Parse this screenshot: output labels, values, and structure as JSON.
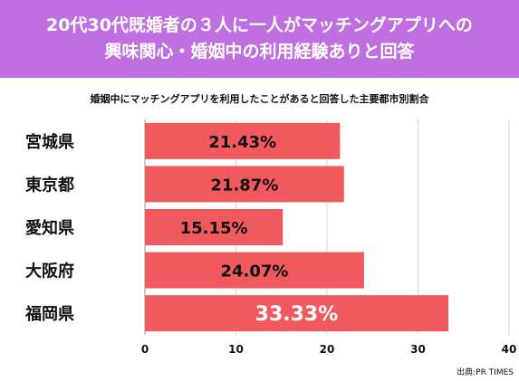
{
  "header": {
    "title_line1": "20代30代既婚者の３人に一人がマッチングアプリへの",
    "title_line2": "興味関心・婚姻中の利用経験ありと回答"
  },
  "source": "出典:PR TIMES",
  "colors": {
    "header_bg": "#c06fe0",
    "bar": "#f05a5e",
    "grid": "#d4d4d4"
  },
  "chart_data": {
    "type": "bar",
    "orientation": "horizontal",
    "title": "婚姻中にマッチングアプリを利用したことがあると回答した主要都市別割合",
    "categories": [
      "宮城県",
      "東京都",
      "愛知県",
      "大阪府",
      "福岡県"
    ],
    "values": [
      21.43,
      21.87,
      15.15,
      24.07,
      33.33
    ],
    "data_labels": [
      "21.43%",
      "21.87%",
      "15.15%",
      "24.07%",
      "33.33%"
    ],
    "xlim": [
      0,
      40
    ],
    "xticks": [
      0,
      10,
      20,
      30,
      40
    ],
    "grid": true
  }
}
